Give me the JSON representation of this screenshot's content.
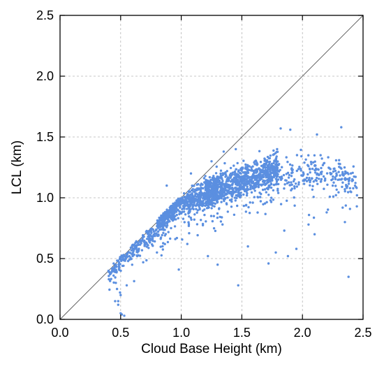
{
  "chart_data": {
    "type": "scatter",
    "title": "",
    "xlabel": "Cloud Base Height (km)",
    "ylabel": "LCL (km)",
    "xlim": [
      0.0,
      2.5
    ],
    "ylim": [
      0.0,
      2.5
    ],
    "xticks": [
      "0.0",
      "0.5",
      "1.0",
      "1.5",
      "2.0",
      "2.5"
    ],
    "yticks": [
      "0.0",
      "0.5",
      "1.0",
      "1.5",
      "2.0",
      "2.5"
    ],
    "grid": true,
    "reference_line": "1:1",
    "colors": {
      "points": "#5b8fe0",
      "reference_line": "#555555"
    },
    "clusters": [
      {
        "x_range": [
          0.4,
          0.9
        ],
        "y_center_at_start": 0.38,
        "y_slope": 0.9,
        "y_spread": 0.08,
        "count": 260
      },
      {
        "x_range": [
          0.8,
          1.3
        ],
        "y_center_at_start": 0.85,
        "y_slope": 0.45,
        "y_spread": 0.12,
        "count": 650
      },
      {
        "x_range": [
          1.2,
          1.8
        ],
        "y_center_at_start": 1.05,
        "y_slope": 0.3,
        "y_spread": 0.13,
        "count": 900
      },
      {
        "x_range": [
          1.7,
          2.45
        ],
        "y_center_at_start": 1.2,
        "y_slope": -0.05,
        "y_spread": 0.15,
        "count": 260
      }
    ],
    "points": [
      [
        0.4,
        0.4
      ],
      [
        0.42,
        0.38
      ],
      [
        0.45,
        0.42
      ],
      [
        0.46,
        0.3
      ],
      [
        0.47,
        0.25
      ],
      [
        0.48,
        0.12
      ],
      [
        0.5,
        0.05
      ],
      [
        0.51,
        0.04
      ],
      [
        0.53,
        0.03
      ],
      [
        0.5,
        0.2
      ],
      [
        0.55,
        0.28
      ],
      [
        0.48,
        0.15
      ],
      [
        0.98,
        0.41
      ],
      [
        1.05,
        0.62
      ],
      [
        1.22,
        0.52
      ],
      [
        1.3,
        0.45
      ],
      [
        1.47,
        0.28
      ],
      [
        1.55,
        0.6
      ],
      [
        1.72,
        0.46
      ],
      [
        1.78,
        0.55
      ],
      [
        1.85,
        0.73
      ],
      [
        1.88,
        0.52
      ],
      [
        1.95,
        0.58
      ],
      [
        2.05,
        0.78
      ],
      [
        2.1,
        0.7
      ],
      [
        2.2,
        0.88
      ],
      [
        2.35,
        0.8
      ],
      [
        2.38,
        0.35
      ],
      [
        2.32,
        1.58
      ],
      [
        2.12,
        1.52
      ],
      [
        1.9,
        1.56
      ],
      [
        1.82,
        1.57
      ],
      [
        1.45,
        1.4
      ],
      [
        1.35,
        1.38
      ],
      [
        1.08,
        1.2
      ],
      [
        0.88,
        1.1
      ],
      [
        1.25,
        1.3
      ],
      [
        2.45,
        1.02
      ],
      [
        2.4,
        1.2
      ],
      [
        2.3,
        1.28
      ],
      [
        2.25,
        1.1
      ],
      [
        2.15,
        1.35
      ]
    ]
  }
}
